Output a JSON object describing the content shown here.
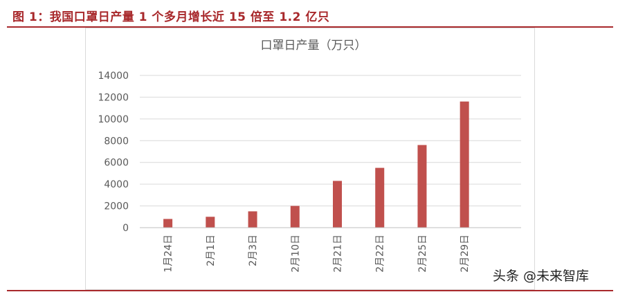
{
  "figure": {
    "title": "图 1：我国口罩日产量 1 个多月增长近 15 倍至 1.2 亿只"
  },
  "watermark": "头条 @未来智库",
  "colors": {
    "bar": "#c0504d",
    "accent": "#a8282b",
    "grid": "#d9d9d9"
  },
  "chart_data": {
    "type": "bar",
    "title": "口罩日产量（万只）",
    "categories": [
      "1月24日",
      "2月1日",
      "2月3日",
      "2月10日",
      "2月21日",
      "2月22日",
      "2月25日",
      "2月29日"
    ],
    "values": [
      800,
      1000,
      1500,
      2000,
      4300,
      5500,
      7600,
      11600
    ],
    "xlabel": "",
    "ylabel": "",
    "ylim": [
      0,
      14000
    ],
    "yticks": [
      0,
      2000,
      4000,
      6000,
      8000,
      10000,
      12000,
      14000
    ],
    "grid": true,
    "legend": "none"
  }
}
